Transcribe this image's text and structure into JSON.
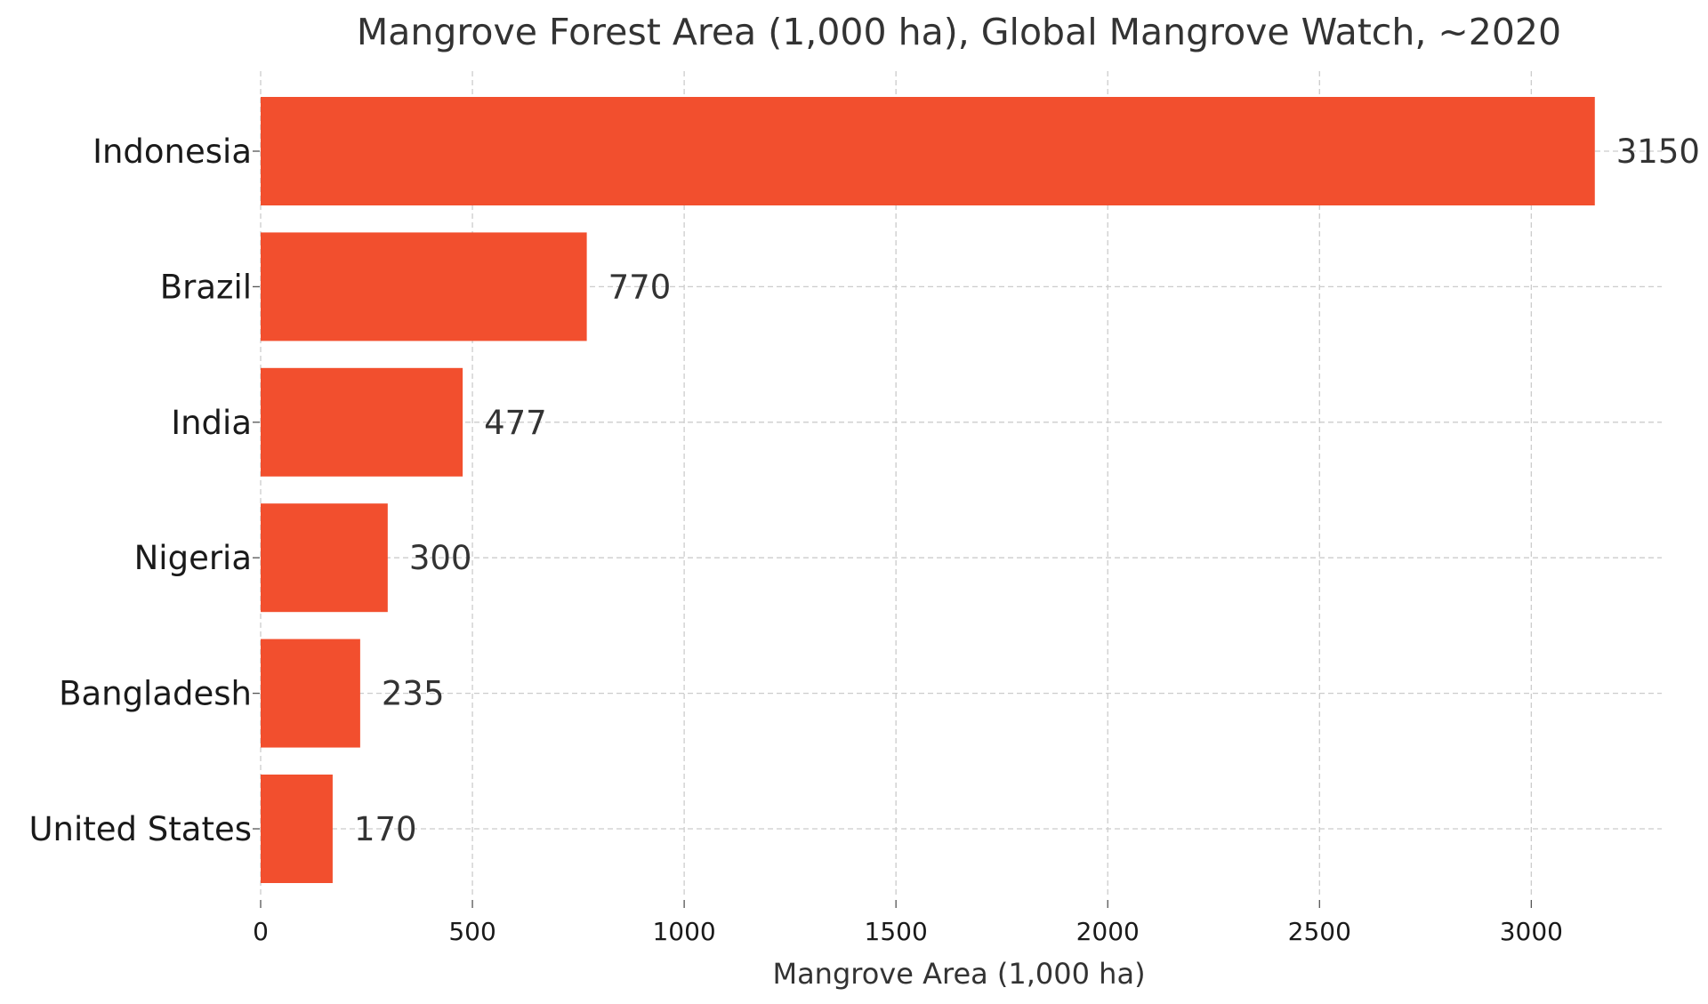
{
  "chart_data": {
    "type": "bar",
    "orientation": "horizontal",
    "title": "Mangrove Forest Area (1,000 ha), Global Mangrove Watch, ~2020",
    "xlabel": "Mangrove Area (1,000 ha)",
    "ylabel": "",
    "categories": [
      "Indonesia",
      "Brazil",
      "India",
      "Nigeria",
      "Bangladesh",
      "United States"
    ],
    "values": [
      3150,
      770,
      477,
      300,
      235,
      170
    ],
    "data_labels": [
      "3150",
      "770",
      "477",
      "300",
      "235",
      "170"
    ],
    "xlim": [
      0,
      3308
    ],
    "xticks": [
      0,
      500,
      1000,
      1500,
      2000,
      2500,
      3000
    ],
    "xtick_labels": [
      "0",
      "500",
      "1000",
      "1500",
      "2000",
      "2500",
      "3000"
    ],
    "grid": true,
    "bar_color": "#f24f2e"
  }
}
